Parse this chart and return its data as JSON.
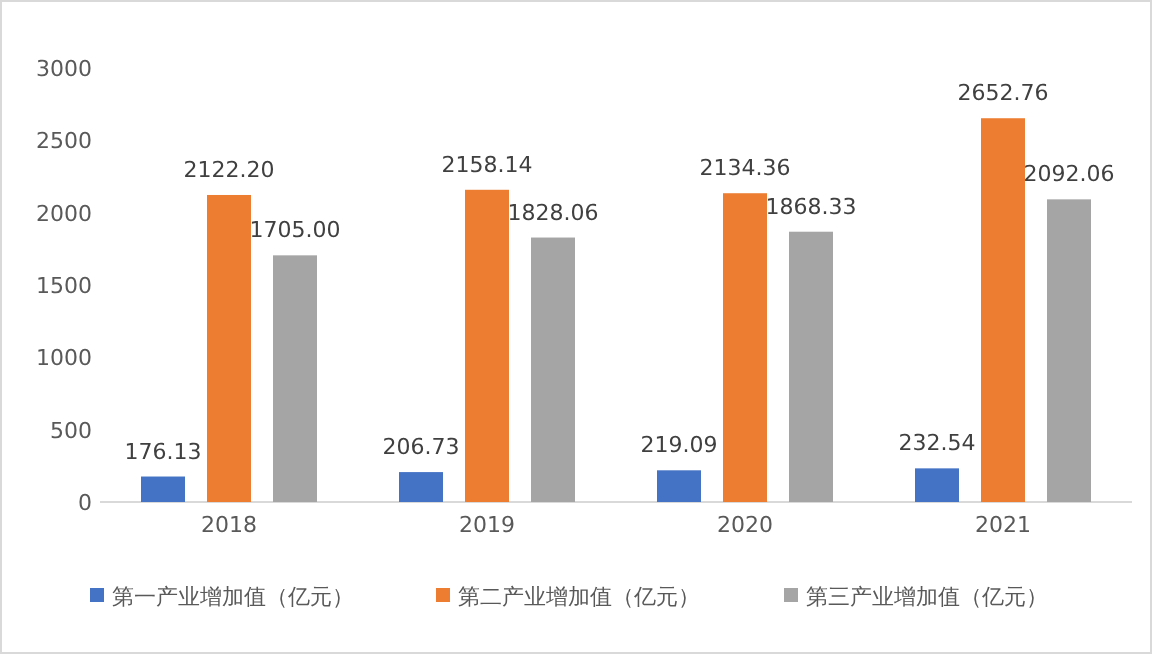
{
  "chart_data": {
    "type": "bar",
    "categories": [
      "2018",
      "2019",
      "2020",
      "2021"
    ],
    "series": [
      {
        "name": "第一产业增加值（亿元）",
        "color": "#4472c4",
        "values": [
          176.13,
          206.73,
          219.09,
          232.54
        ],
        "value_labels": [
          "176.13",
          "206.73",
          "219.09",
          "232.54"
        ]
      },
      {
        "name": "第二产业增加值（亿元）",
        "color": "#ed7d31",
        "values": [
          2122.2,
          2158.14,
          2134.36,
          2652.76
        ],
        "value_labels": [
          "2122.20",
          "2158.14",
          "2134.36",
          "2652.76"
        ]
      },
      {
        "name": "第三产业增加值（亿元）",
        "color": "#a5a5a5",
        "values": [
          1705.0,
          1828.06,
          1868.33,
          2092.06
        ],
        "value_labels": [
          "1705.00",
          "1828.06",
          "1868.33",
          "2092.06"
        ]
      }
    ],
    "ylim": [
      0,
      3000
    ],
    "yticks": [
      0,
      500,
      1000,
      1500,
      2000,
      2500,
      3000
    ],
    "grid": false,
    "legend": "bottom"
  }
}
